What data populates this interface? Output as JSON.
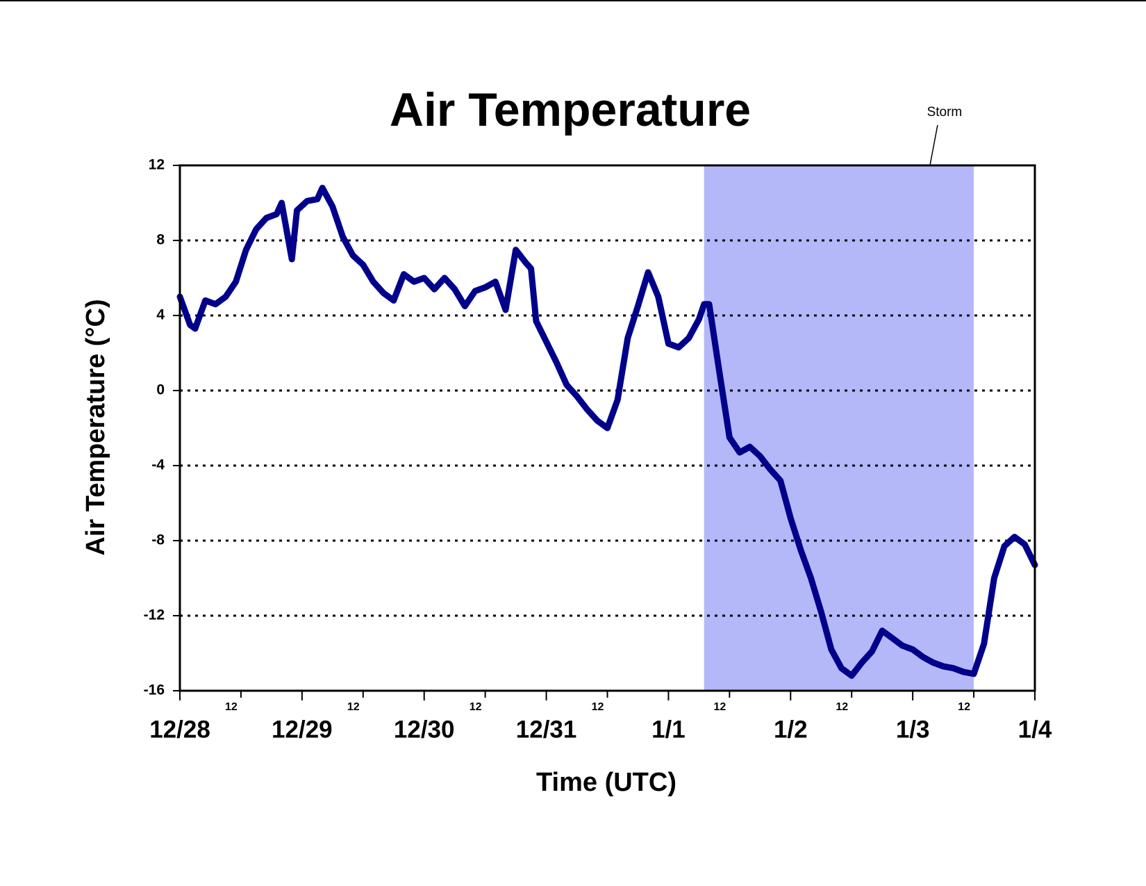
{
  "chart_data": {
    "type": "line",
    "title": "Air Temperature",
    "xlabel": "Time (UTC)",
    "ylabel": "Air Temperature (°C)",
    "xlim": [
      0,
      168
    ],
    "ylim": [
      -16,
      12
    ],
    "yticks": [
      -16,
      -12,
      -8,
      -4,
      0,
      4,
      8,
      12
    ],
    "xticks": [
      {
        "value": 0,
        "label": "12/28"
      },
      {
        "value": 24,
        "label": "12/29"
      },
      {
        "value": 48,
        "label": "12/30"
      },
      {
        "value": 72,
        "label": "12/31"
      },
      {
        "value": 96,
        "label": "1/1"
      },
      {
        "value": 120,
        "label": "1/2"
      },
      {
        "value": 144,
        "label": "1/3"
      },
      {
        "value": 168,
        "label": "1/4"
      }
    ],
    "xminorticks": [
      {
        "value": 12,
        "label": "12"
      },
      {
        "value": 36,
        "label": "12"
      },
      {
        "value": 60,
        "label": "12"
      },
      {
        "value": 84,
        "label": "12"
      },
      {
        "value": 108,
        "label": "12"
      },
      {
        "value": 132,
        "label": "12"
      },
      {
        "value": 156,
        "label": "12"
      }
    ],
    "grid": true,
    "spans": [
      {
        "label": "Storm",
        "x": [
          103,
          156
        ],
        "color": "#b5b8f8"
      }
    ],
    "series": [
      {
        "name": "Air Temperature",
        "color": "#00008b",
        "x": [
          0,
          2,
          3,
          5,
          7,
          9,
          11,
          13,
          15,
          17,
          19,
          20,
          22,
          23,
          25,
          27,
          28,
          30,
          32,
          34,
          36,
          38,
          40,
          42,
          44,
          46,
          48,
          50,
          52,
          54,
          56,
          58,
          60,
          62,
          64,
          66,
          68,
          69,
          70,
          72,
          74,
          76,
          78,
          80,
          82,
          84,
          86,
          88,
          90,
          92,
          94,
          96,
          98,
          100,
          102,
          103,
          104,
          106,
          108,
          110,
          112,
          114,
          116,
          118,
          120,
          122,
          124,
          126,
          128,
          130,
          132,
          134,
          136,
          138,
          140,
          142,
          144,
          146,
          148,
          150,
          152,
          154,
          156,
          158,
          160,
          162,
          164,
          166,
          168
        ],
        "values": [
          5.0,
          3.5,
          3.3,
          4.8,
          4.6,
          5.0,
          5.8,
          7.5,
          8.6,
          9.2,
          9.4,
          10.0,
          7.0,
          9.6,
          10.1,
          10.2,
          10.8,
          9.8,
          8.2,
          7.2,
          6.7,
          5.8,
          5.2,
          4.8,
          6.2,
          5.8,
          6.0,
          5.4,
          6.0,
          5.4,
          4.5,
          5.3,
          5.5,
          5.8,
          4.3,
          7.5,
          6.8,
          6.5,
          3.7,
          2.6,
          1.5,
          0.3,
          -0.3,
          -1.0,
          -1.6,
          -2.0,
          -0.5,
          2.8,
          4.5,
          6.3,
          5.0,
          2.5,
          2.3,
          2.8,
          3.8,
          4.6,
          4.6,
          1.0,
          -2.5,
          -3.3,
          -3.0,
          -3.5,
          -4.2,
          -4.8,
          -6.8,
          -8.5,
          -10.0,
          -11.8,
          -13.8,
          -14.8,
          -15.2,
          -14.5,
          -13.9,
          -12.8,
          -13.2,
          -13.6,
          -13.8,
          -14.2,
          -14.5,
          -14.7,
          -14.8,
          -15.0,
          -15.1,
          -13.5,
          -10.0,
          -8.3,
          -7.8,
          -8.2,
          -9.3
        ]
      }
    ]
  }
}
